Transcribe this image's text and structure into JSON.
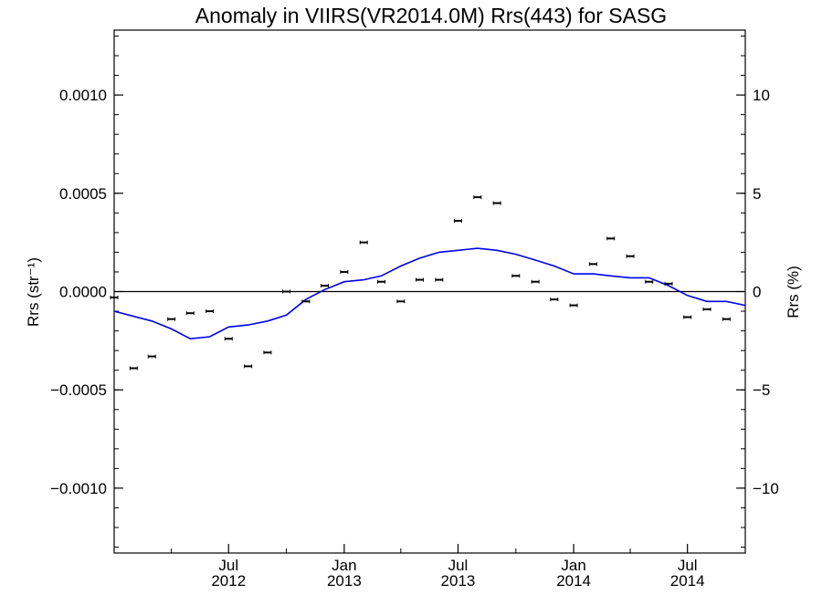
{
  "chart_data": {
    "type": "scatter",
    "title": "Anomaly in VIIRS(VR2014.0M) Rrs(443) for SASG",
    "ylabel_left": "Rrs (str⁻¹)",
    "ylabel_right": "Rrs (%)",
    "xlim": [
      "2012-01-01",
      "2014-10-01"
    ],
    "ylim": [
      -0.00133,
      0.00133
    ],
    "ylim_right": [
      -13.3,
      13.3
    ],
    "x_ticks": [
      {
        "month": "Jul",
        "year": "2012",
        "date": "2012-07-01"
      },
      {
        "month": "Jan",
        "year": "2013",
        "date": "2013-01-01"
      },
      {
        "month": "Jul",
        "year": "2013",
        "date": "2013-07-01"
      },
      {
        "month": "Jan",
        "year": "2014",
        "date": "2014-01-01"
      },
      {
        "month": "Jul",
        "year": "2014",
        "date": "2014-07-01"
      }
    ],
    "y_ticks_left": [
      {
        "value": 0.001,
        "label": "0.0010"
      },
      {
        "value": 0.0005,
        "label": "0.0005"
      },
      {
        "value": 0.0,
        "label": "0.0000"
      },
      {
        "value": -0.0005,
        "label": "−0.0005"
      },
      {
        "value": -0.001,
        "label": "−0.0010"
      }
    ],
    "y_ticks_right": [
      {
        "value": 10,
        "label": "10"
      },
      {
        "value": 5,
        "label": "5"
      },
      {
        "value": 0,
        "label": "0"
      },
      {
        "value": -5,
        "label": "−5"
      },
      {
        "value": -10,
        "label": "−10"
      }
    ],
    "zero_line": 0.0,
    "series": [
      {
        "kind": "points",
        "color": "#000000",
        "points": [
          {
            "x": "2012-01-01",
            "y": -3e-05
          },
          {
            "x": "2012-02-01",
            "y": -0.00039
          },
          {
            "x": "2012-03-01",
            "y": -0.00033
          },
          {
            "x": "2012-04-01",
            "y": -0.00014
          },
          {
            "x": "2012-05-01",
            "y": -0.00011
          },
          {
            "x": "2012-06-01",
            "y": -0.0001
          },
          {
            "x": "2012-07-01",
            "y": -0.00024
          },
          {
            "x": "2012-08-01",
            "y": -0.00038
          },
          {
            "x": "2012-09-01",
            "y": -0.00031
          },
          {
            "x": "2012-10-01",
            "y": 0.0
          },
          {
            "x": "2012-11-01",
            "y": -5e-05
          },
          {
            "x": "2012-12-01",
            "y": 3e-05
          },
          {
            "x": "2013-01-01",
            "y": 0.0001
          },
          {
            "x": "2013-02-01",
            "y": 0.00025
          },
          {
            "x": "2013-03-01",
            "y": 5e-05
          },
          {
            "x": "2013-04-01",
            "y": -5e-05
          },
          {
            "x": "2013-05-01",
            "y": 6e-05
          },
          {
            "x": "2013-06-01",
            "y": 6e-05
          },
          {
            "x": "2013-07-01",
            "y": 0.00036
          },
          {
            "x": "2013-08-01",
            "y": 0.00048
          },
          {
            "x": "2013-09-01",
            "y": 0.00045
          },
          {
            "x": "2013-10-01",
            "y": 8e-05
          },
          {
            "x": "2013-11-01",
            "y": 5e-05
          },
          {
            "x": "2013-12-01",
            "y": -4e-05
          },
          {
            "x": "2014-01-01",
            "y": -7e-05
          },
          {
            "x": "2014-02-01",
            "y": 0.00014
          },
          {
            "x": "2014-03-01",
            "y": 0.00027
          },
          {
            "x": "2014-04-01",
            "y": 0.00018
          },
          {
            "x": "2014-05-01",
            "y": 5e-05
          },
          {
            "x": "2014-06-01",
            "y": 4e-05
          },
          {
            "x": "2014-07-01",
            "y": -0.00013
          },
          {
            "x": "2014-08-01",
            "y": -9e-05
          },
          {
            "x": "2014-09-01",
            "y": -0.00014
          }
        ]
      },
      {
        "kind": "line",
        "color": "#0000ee",
        "points": [
          {
            "x": "2012-01-01",
            "y": -0.0001
          },
          {
            "x": "2012-03-01",
            "y": -0.00015
          },
          {
            "x": "2012-04-01",
            "y": -0.00019
          },
          {
            "x": "2012-05-01",
            "y": -0.00024
          },
          {
            "x": "2012-06-01",
            "y": -0.00023
          },
          {
            "x": "2012-07-01",
            "y": -0.00018
          },
          {
            "x": "2012-08-01",
            "y": -0.00017
          },
          {
            "x": "2012-09-01",
            "y": -0.00015
          },
          {
            "x": "2012-10-01",
            "y": -0.00012
          },
          {
            "x": "2012-11-01",
            "y": -4e-05
          },
          {
            "x": "2012-12-01",
            "y": 1e-05
          },
          {
            "x": "2013-01-01",
            "y": 5e-05
          },
          {
            "x": "2013-02-01",
            "y": 6e-05
          },
          {
            "x": "2013-03-01",
            "y": 8e-05
          },
          {
            "x": "2013-04-01",
            "y": 0.00013
          },
          {
            "x": "2013-05-01",
            "y": 0.00017
          },
          {
            "x": "2013-06-01",
            "y": 0.0002
          },
          {
            "x": "2013-07-01",
            "y": 0.00021
          },
          {
            "x": "2013-08-01",
            "y": 0.00022
          },
          {
            "x": "2013-09-01",
            "y": 0.00021
          },
          {
            "x": "2013-10-01",
            "y": 0.00019
          },
          {
            "x": "2013-11-01",
            "y": 0.00016
          },
          {
            "x": "2013-12-01",
            "y": 0.00013
          },
          {
            "x": "2014-01-01",
            "y": 9e-05
          },
          {
            "x": "2014-02-01",
            "y": 9e-05
          },
          {
            "x": "2014-03-01",
            "y": 8e-05
          },
          {
            "x": "2014-04-01",
            "y": 7e-05
          },
          {
            "x": "2014-05-01",
            "y": 7e-05
          },
          {
            "x": "2014-06-01",
            "y": 3e-05
          },
          {
            "x": "2014-07-01",
            "y": -2e-05
          },
          {
            "x": "2014-08-01",
            "y": -5e-05
          },
          {
            "x": "2014-09-01",
            "y": -5e-05
          },
          {
            "x": "2014-10-01",
            "y": -7e-05
          }
        ]
      }
    ]
  }
}
